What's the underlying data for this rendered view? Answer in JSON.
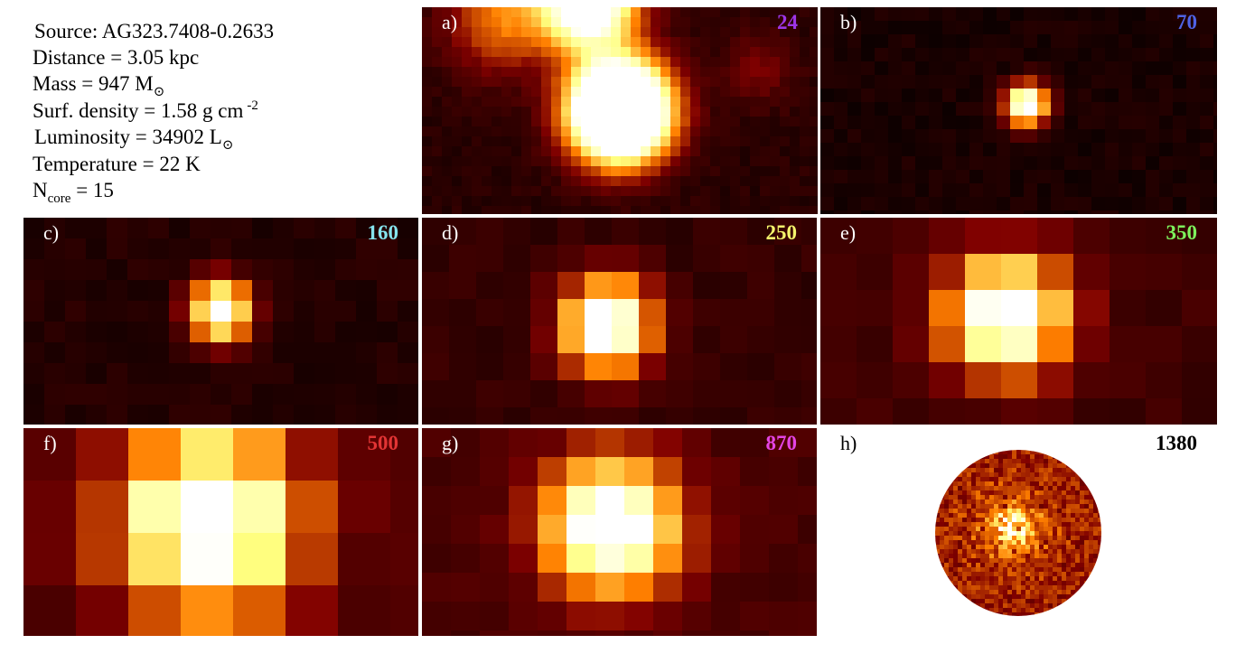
{
  "info": {
    "source": "Source: AG323.7408-0.2633",
    "distance": "Distance = 3.05 kpc",
    "mass": "Mass = 947 M",
    "mass_sub": "⊙",
    "surf_density": "Surf. density = 1.58 g cm",
    "surf_density_sup": "-2",
    "luminosity": "Luminosity = 34902 L",
    "luminosity_sub": "⊙",
    "temperature": "Temperature = 22 K",
    "ncore": "N",
    "ncore_sub": "core",
    "ncore_value": " = 15"
  },
  "panels": [
    {
      "label": "a)",
      "wavelength": 24,
      "color": "#9c35e6"
    },
    {
      "label": "b)",
      "wavelength": 70,
      "color": "#4f63e6"
    },
    {
      "label": "c)",
      "wavelength": 160,
      "color": "#86e4ee"
    },
    {
      "label": "d)",
      "wavelength": 250,
      "color": "#f4f46c"
    },
    {
      "label": "e)",
      "wavelength": 350,
      "color": "#7ef25c"
    },
    {
      "label": "f)",
      "wavelength": 500,
      "color": "#e23434"
    },
    {
      "label": "g)",
      "wavelength": 870,
      "color": "#e444e4"
    },
    {
      "label": "h)",
      "wavelength": 1380,
      "color": "#000000"
    }
  ]
}
